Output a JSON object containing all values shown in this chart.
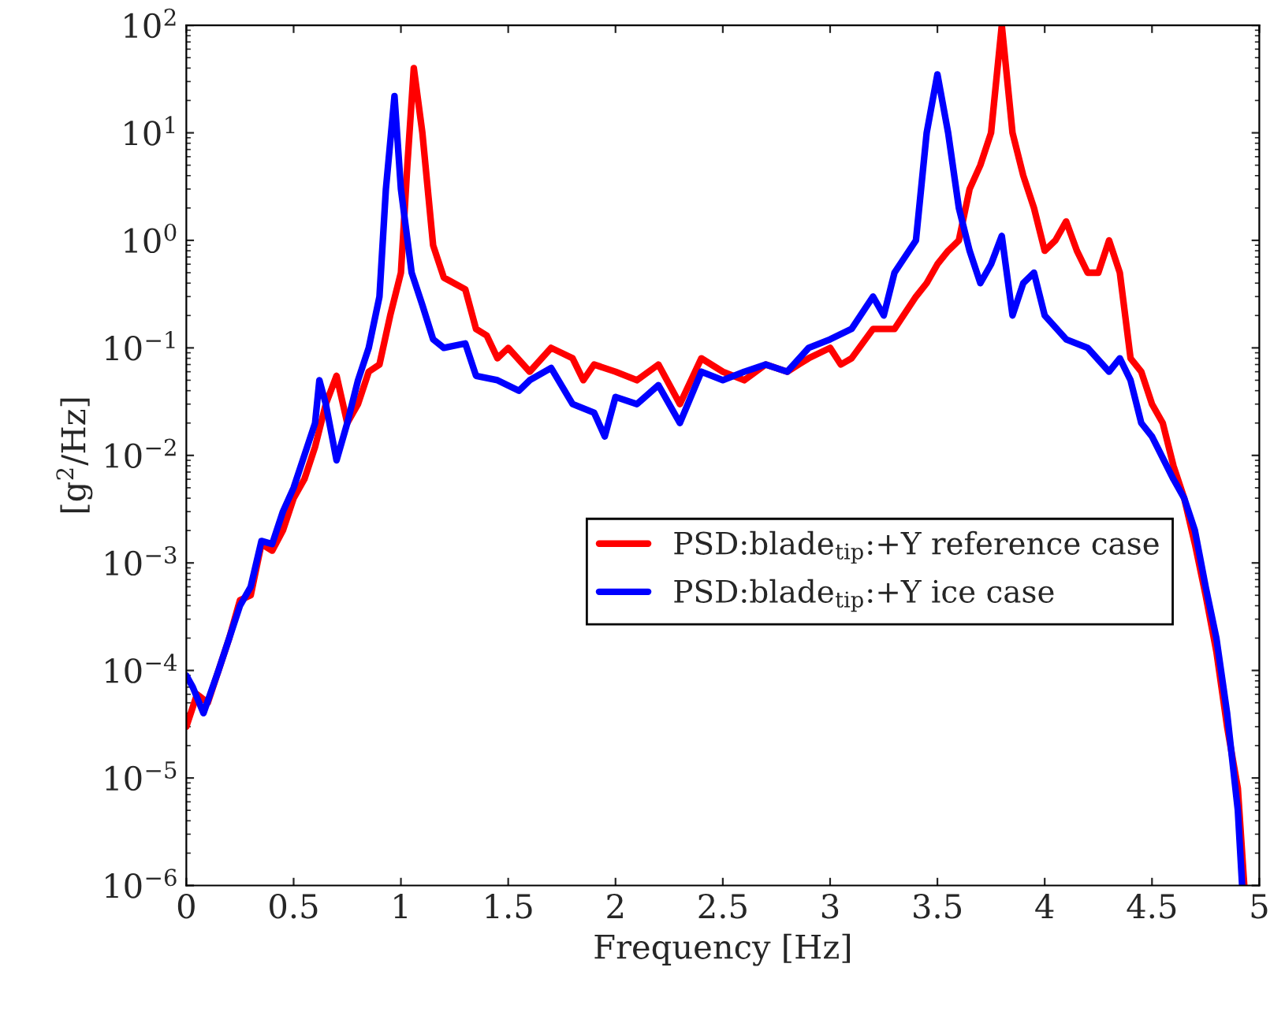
{
  "chart_data": {
    "type": "line",
    "xlabel": "Frequency [Hz]",
    "ylabel": "[g$^{2}$/Hz]",
    "log": "y",
    "grid": false,
    "legend": "right",
    "marker": "none",
    "line_style": "solid",
    "xlim": [
      0,
      5
    ],
    "xticks": [
      0,
      0.5,
      1,
      1.5,
      2,
      2.5,
      3,
      3.5,
      4,
      4.5,
      5
    ],
    "ylim": [
      1e-06,
      100
    ],
    "yticks": [
      {
        "value": 1e-06,
        "label": "10$^{−6}$"
      },
      {
        "value": 1e-05,
        "label": "10$^{−5}$"
      },
      {
        "value": 0.0001,
        "label": "10$^{−4}$"
      },
      {
        "value": 0.001,
        "label": "10$^{−3}$"
      },
      {
        "value": 0.01,
        "label": "10$^{−2}$"
      },
      {
        "value": 0.1,
        "label": "10$^{−1}$"
      },
      {
        "value": 1,
        "label": "10$^{0}$"
      },
      {
        "value": 10,
        "label": "10$^{1}$"
      },
      {
        "value": 100,
        "label": "10$^{2}$"
      }
    ],
    "series": [
      {
        "name": "PSD:blade$_{tip}$:+Y reference case",
        "color": "#ff0000",
        "x": [
          0,
          0.05,
          0.1,
          0.2,
          0.25,
          0.3,
          0.35,
          0.4,
          0.45,
          0.5,
          0.55,
          0.6,
          0.65,
          0.7,
          0.75,
          0.8,
          0.85,
          0.9,
          0.95,
          1.0,
          1.03,
          1.06,
          1.1,
          1.15,
          1.2,
          1.3,
          1.35,
          1.4,
          1.45,
          1.5,
          1.6,
          1.7,
          1.8,
          1.85,
          1.9,
          2.0,
          2.1,
          2.2,
          2.3,
          2.4,
          2.5,
          2.6,
          2.7,
          2.8,
          2.9,
          3.0,
          3.05,
          3.1,
          3.2,
          3.3,
          3.4,
          3.45,
          3.5,
          3.55,
          3.6,
          3.65,
          3.7,
          3.75,
          3.8,
          3.85,
          3.9,
          3.95,
          4.0,
          4.05,
          4.1,
          4.15,
          4.2,
          4.25,
          4.3,
          4.35,
          4.4,
          4.45,
          4.5,
          4.55,
          4.6,
          4.65,
          4.7,
          4.75,
          4.8,
          4.85,
          4.9,
          4.93
        ],
        "values": [
          3e-05,
          6e-05,
          5e-05,
          0.0002,
          0.00045,
          0.0005,
          0.0015,
          0.0013,
          0.002,
          0.004,
          0.006,
          0.012,
          0.03,
          0.055,
          0.02,
          0.03,
          0.06,
          0.07,
          0.2,
          0.5,
          5,
          40,
          10,
          0.9,
          0.45,
          0.35,
          0.15,
          0.13,
          0.08,
          0.1,
          0.06,
          0.1,
          0.08,
          0.05,
          0.07,
          0.06,
          0.05,
          0.07,
          0.03,
          0.08,
          0.06,
          0.05,
          0.07,
          0.06,
          0.08,
          0.1,
          0.07,
          0.08,
          0.15,
          0.15,
          0.3,
          0.4,
          0.6,
          0.8,
          1.0,
          3,
          5,
          10,
          100,
          10,
          4,
          2,
          0.8,
          1.0,
          1.5,
          0.8,
          0.5,
          0.5,
          1.0,
          0.5,
          0.08,
          0.06,
          0.03,
          0.02,
          0.008,
          0.004,
          0.0015,
          0.0005,
          0.00015,
          3e-05,
          8e-06,
          1e-06
        ]
      },
      {
        "name": "PSD:blade$_{tip}$:+Y ice case",
        "color": "#0000ff",
        "x": [
          0,
          0.03,
          0.08,
          0.15,
          0.2,
          0.25,
          0.3,
          0.35,
          0.4,
          0.45,
          0.5,
          0.55,
          0.6,
          0.62,
          0.65,
          0.7,
          0.75,
          0.8,
          0.85,
          0.9,
          0.93,
          0.97,
          1.0,
          1.05,
          1.1,
          1.15,
          1.2,
          1.3,
          1.35,
          1.45,
          1.55,
          1.6,
          1.7,
          1.8,
          1.9,
          1.95,
          2.0,
          2.1,
          2.2,
          2.3,
          2.4,
          2.5,
          2.6,
          2.7,
          2.8,
          2.9,
          3.0,
          3.1,
          3.2,
          3.25,
          3.3,
          3.4,
          3.45,
          3.5,
          3.55,
          3.6,
          3.65,
          3.7,
          3.75,
          3.8,
          3.85,
          3.9,
          3.95,
          4.0,
          4.1,
          4.2,
          4.3,
          4.35,
          4.4,
          4.45,
          4.5,
          4.6,
          4.65,
          4.7,
          4.75,
          4.8,
          4.85,
          4.9,
          4.92
        ],
        "values": [
          9e-05,
          7e-05,
          4e-05,
          0.0001,
          0.0002,
          0.0004,
          0.0006,
          0.0016,
          0.0015,
          0.003,
          0.005,
          0.01,
          0.02,
          0.05,
          0.03,
          0.009,
          0.02,
          0.05,
          0.1,
          0.3,
          3,
          22,
          3,
          0.5,
          0.25,
          0.12,
          0.1,
          0.11,
          0.055,
          0.05,
          0.04,
          0.05,
          0.065,
          0.03,
          0.025,
          0.015,
          0.035,
          0.03,
          0.045,
          0.02,
          0.06,
          0.05,
          0.06,
          0.07,
          0.06,
          0.1,
          0.12,
          0.15,
          0.3,
          0.2,
          0.5,
          1.0,
          10,
          35,
          10,
          2,
          0.8,
          0.4,
          0.6,
          1.1,
          0.2,
          0.4,
          0.5,
          0.2,
          0.12,
          0.1,
          0.06,
          0.08,
          0.05,
          0.02,
          0.015,
          0.006,
          0.004,
          0.002,
          0.0006,
          0.0002,
          4e-05,
          5e-06,
          1e-06
        ]
      }
    ]
  }
}
